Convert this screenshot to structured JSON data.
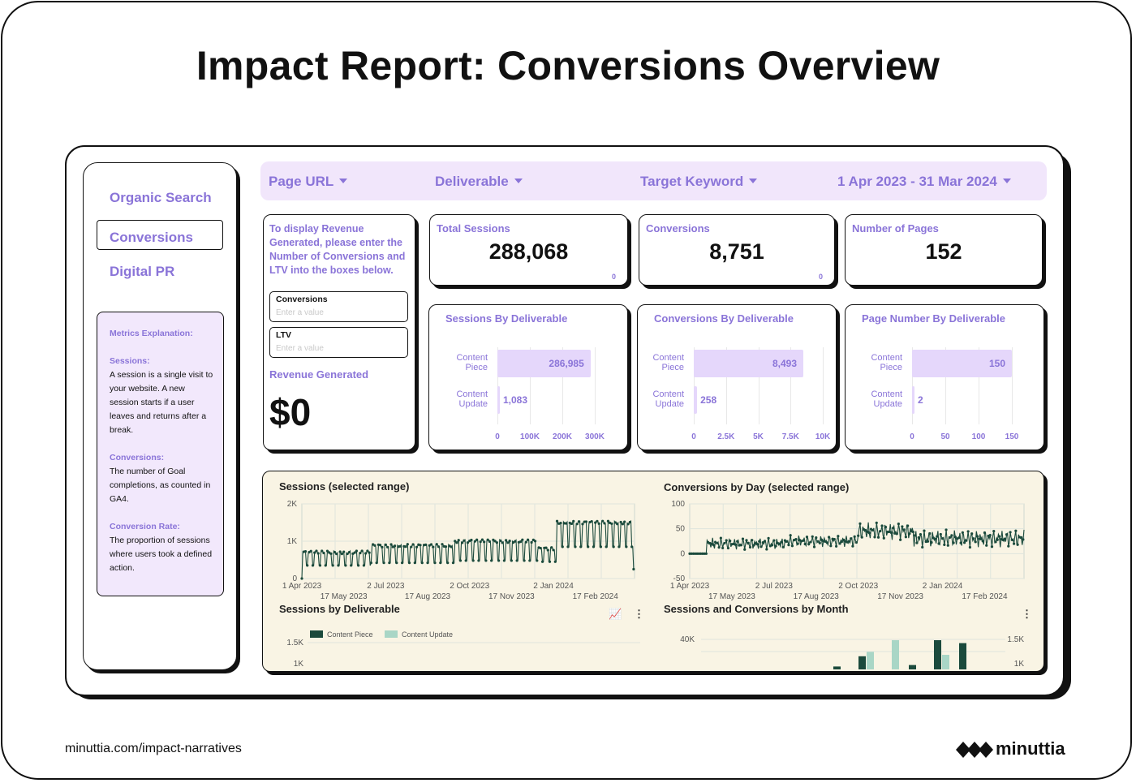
{
  "page_title": "Impact Report: Conversions Overview",
  "footer": {
    "url": "minuttia.com/impact-narratives",
    "brand": "minuttia"
  },
  "sidebar": {
    "items": [
      {
        "label": "Organic Search",
        "active": false
      },
      {
        "label": "Conversions",
        "active": true
      },
      {
        "label": "Digital PR",
        "active": false
      }
    ],
    "metrics": {
      "heading": "Metrics Explanation:",
      "sessions_title": "Sessions:",
      "sessions_text": "A session is a single visit to your website. A new session starts if a user leaves and returns after a break.",
      "conversions_title": "Conversions:",
      "conversions_text": "The number of Goal completions, as counted in GA4.",
      "rate_title": "Conversion Rate:",
      "rate_text": "The proportion of sessions where users took a defined action."
    }
  },
  "filters": {
    "page_url": "Page URL",
    "deliverable": "Deliverable",
    "target_keyword": "Target Keyword",
    "date_range": "1 Apr 2023 - 31 Mar 2024"
  },
  "revenue": {
    "instructions": "To display Revenue Generated, please enter the Number of Conversions and LTV into the boxes below.",
    "conversions_label": "Conversions",
    "conversions_placeholder": "Enter a value",
    "ltv_label": "LTV",
    "ltv_placeholder": "Enter a value",
    "generated_label": "Revenue Generated",
    "generated_value": "$0"
  },
  "kpis": {
    "total_sessions": {
      "label": "Total Sessions",
      "value": "288,068",
      "sub": "0"
    },
    "conversions": {
      "label": "Conversions",
      "value": "8,751",
      "sub": "0"
    },
    "pages": {
      "label": "Number of Pages",
      "value": "152"
    }
  },
  "colors": {
    "accent": "#8a74d8",
    "bar_fill": "#e5d7fb",
    "filter_bg": "#f1e6fb",
    "panel_bg": "#f9f4e4",
    "line": "#1b4a3c",
    "light_series": "#a9d6c6"
  },
  "chart_data": [
    {
      "type": "bar",
      "title": "Sessions By Deliverable",
      "categories": [
        "Content Piece",
        "Content Update"
      ],
      "values": [
        286985,
        1083
      ],
      "value_labels": [
        "286,985",
        "1,083"
      ],
      "xlim": [
        0,
        300000
      ],
      "ticks": [
        "0",
        "100K",
        "200K",
        "300K"
      ],
      "tick_values": [
        0,
        100000,
        200000,
        300000
      ]
    },
    {
      "type": "bar",
      "title": "Conversions By Deliverable",
      "categories": [
        "Content Piece",
        "Content Update"
      ],
      "values": [
        8493,
        258
      ],
      "value_labels": [
        "8,493",
        "258"
      ],
      "xlim": [
        0,
        10000
      ],
      "ticks": [
        "0",
        "2.5K",
        "5K",
        "7.5K",
        "10K"
      ],
      "tick_values": [
        0,
        2500,
        5000,
        7500,
        10000
      ]
    },
    {
      "type": "bar",
      "title": "Page Number By Deliverable",
      "categories": [
        "Content Piece",
        "Content Update"
      ],
      "values": [
        150,
        2
      ],
      "value_labels": [
        "150",
        "2"
      ],
      "xlim": [
        0,
        150
      ],
      "ticks": [
        "0",
        "50",
        "100",
        "150"
      ],
      "tick_values": [
        0,
        50,
        100,
        150
      ]
    },
    {
      "type": "line",
      "title": "Sessions (selected range)",
      "ylim": [
        0,
        2000
      ],
      "yticks": [
        "0",
        "1K",
        "2K"
      ],
      "xticks_top": [
        "1 Apr 2023",
        "2 Jul 2023",
        "2 Oct 2023",
        "2 Jan 2024"
      ],
      "xticks_bottom": [
        "17 May 2023",
        "17 Aug 2023",
        "17 Nov 2023",
        "17 Feb 2024"
      ],
      "x_range": [
        "2023-04-01",
        "2024-03-31"
      ],
      "segments": [
        {
          "from": "2023-04-01",
          "to": "2023-06-15",
          "high": 700,
          "low": 350
        },
        {
          "from": "2023-06-15",
          "to": "2023-09-15",
          "high": 880,
          "low": 420
        },
        {
          "from": "2023-09-15",
          "to": "2023-12-15",
          "high": 1000,
          "low": 480
        },
        {
          "from": "2023-12-15",
          "to": "2024-01-05",
          "high": 800,
          "low": 450
        },
        {
          "from": "2024-01-05",
          "to": "2024-03-31",
          "high": 1500,
          "low": 850
        }
      ],
      "end_value": 250
    },
    {
      "type": "line",
      "title": "Conversions by Day (selected range)",
      "ylim": [
        -50,
        100
      ],
      "yticks": [
        "-50",
        "0",
        "50",
        "100"
      ],
      "xticks_top": [
        "1 Apr 2023",
        "2 Jul 2023",
        "2 Oct 2023",
        "2 Jan 2024"
      ],
      "xticks_bottom": [
        "17 May 2023",
        "17 Aug 2023",
        "17 Nov 2023",
        "17 Feb 2024"
      ],
      "x_range": [
        "2023-04-01",
        "2024-03-31"
      ],
      "flat_until": "2023-04-20",
      "segments": [
        {
          "from": "2023-04-20",
          "to": "2023-07-15",
          "base": 20,
          "amp": 12
        },
        {
          "from": "2023-07-15",
          "to": "2023-10-01",
          "base": 25,
          "amp": 12
        },
        {
          "from": "2023-10-01",
          "to": "2023-12-01",
          "base": 45,
          "amp": 18
        },
        {
          "from": "2023-12-01",
          "to": "2024-03-31",
          "base": 30,
          "amp": 18
        }
      ]
    },
    {
      "type": "bar",
      "title": "Sessions by Deliverable",
      "series": [
        {
          "name": "Content Piece"
        },
        {
          "name": "Content Update"
        }
      ],
      "yticks": [
        "1.5K",
        "1K"
      ]
    },
    {
      "type": "bar",
      "title": "Sessions and Conversions by Month",
      "yticks_left": [
        "40K"
      ],
      "yticks_right": [
        "1.5K",
        "1K"
      ],
      "bars_dark": [
        0.1,
        0.45,
        0,
        0.15,
        1,
        0.9
      ],
      "bars_light": [
        0,
        0.6,
        1,
        0,
        0.5,
        0
      ]
    }
  ]
}
